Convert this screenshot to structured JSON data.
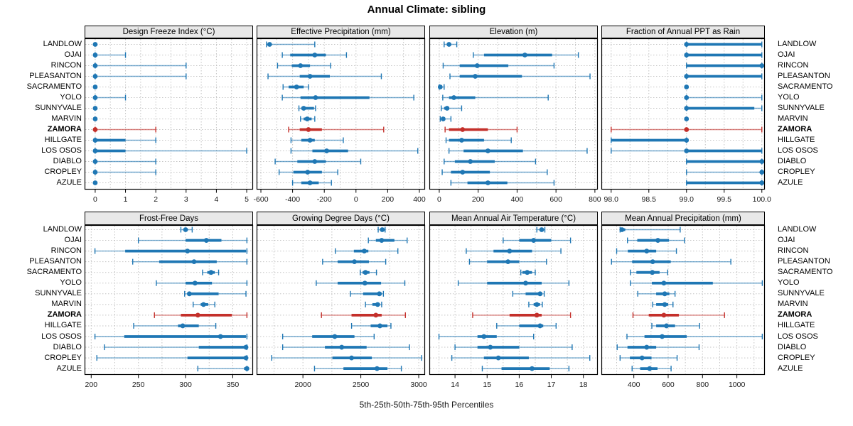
{
  "title": "Annual Climate: sibling",
  "caption": "5th-25th-50th-75th-95th Percentiles",
  "colors": {
    "site": "#1f77b4",
    "highlight": "#c4302b",
    "strip_bg": "#e8e8e8",
    "grid": "#c4c4c4",
    "border": "#000000",
    "panel_bg": "#ffffff"
  },
  "sites": [
    "LANDLOW",
    "OJAI",
    "RINCON",
    "PLEASANTON",
    "SACRAMENTO",
    "YOLO",
    "SUNNYVALE",
    "MARVIN",
    "ZAMORA",
    "HILLGATE",
    "LOS OSOS",
    "DIABLO",
    "CROPLEY",
    "AZULE"
  ],
  "highlight_site": "ZAMORA",
  "percentiles": [
    "5th",
    "25th",
    "50th",
    "75th",
    "95th"
  ],
  "chart_data": [
    {
      "type": "scatter",
      "subtype": "percentile-range-dotplot",
      "title": "Design Freeze Index (°C)",
      "xlim": [
        -0.35,
        5.21
      ],
      "ticks": [
        0,
        1,
        2,
        3,
        4,
        5
      ],
      "tick_labels": [
        "0",
        "1",
        "2",
        "3",
        "4",
        "5"
      ],
      "values": [
        [
          0,
          0,
          0,
          0,
          0
        ],
        [
          0,
          0,
          0,
          0,
          1
        ],
        [
          0,
          0,
          0,
          0,
          3
        ],
        [
          0,
          0,
          0,
          0,
          3
        ],
        [
          0,
          0,
          0,
          0,
          0
        ],
        [
          0,
          0,
          0,
          0,
          1
        ],
        [
          0,
          0,
          0,
          0,
          0
        ],
        [
          0,
          0,
          0,
          0,
          0
        ],
        [
          0,
          0,
          0,
          0,
          2
        ],
        [
          0,
          0,
          0,
          1,
          2
        ],
        [
          0,
          0,
          0,
          1,
          5
        ],
        [
          0,
          0,
          0,
          0,
          2
        ],
        [
          0,
          0,
          0,
          0,
          2
        ],
        [
          0,
          0,
          0,
          0,
          0
        ]
      ]
    },
    {
      "type": "scatter",
      "subtype": "percentile-range-dotplot",
      "title": "Effective Precipitation (mm)",
      "xlim": [
        -627,
        436
      ],
      "ticks": [
        -600,
        -400,
        -200,
        0,
        200,
        400
      ],
      "tick_labels": [
        "-600",
        "-400",
        "-200",
        "0",
        "200",
        "400"
      ],
      "values": [
        [
          -565,
          -555,
          -545,
          -535,
          -260
        ],
        [
          -465,
          -415,
          -260,
          -190,
          -60
        ],
        [
          -495,
          -405,
          -350,
          -290,
          -160
        ],
        [
          -555,
          -355,
          -290,
          -165,
          160
        ],
        [
          -460,
          -425,
          -375,
          -330,
          -300
        ],
        [
          -465,
          -350,
          -255,
          85,
          365
        ],
        [
          -360,
          -345,
          -330,
          -265,
          -255
        ],
        [
          -350,
          -330,
          -308,
          -280,
          -260
        ],
        [
          -425,
          -355,
          -300,
          -215,
          175
        ],
        [
          -410,
          -345,
          -290,
          -260,
          -80
        ],
        [
          -410,
          -275,
          -185,
          -50,
          390
        ],
        [
          -510,
          -370,
          -260,
          -190,
          30
        ],
        [
          -485,
          -395,
          -305,
          -215,
          -115
        ],
        [
          -400,
          -345,
          -290,
          -235,
          -155
        ]
      ]
    },
    {
      "type": "scatter",
      "subtype": "percentile-range-dotplot",
      "title": "Elevation (m)",
      "xlim": [
        -51,
        815
      ],
      "ticks": [
        0,
        200,
        400,
        600,
        800
      ],
      "tick_labels": [
        "0",
        "200",
        "400",
        "600",
        "800"
      ],
      "values": [
        [
          25,
          40,
          50,
          60,
          90
        ],
        [
          175,
          230,
          440,
          580,
          715
        ],
        [
          20,
          105,
          195,
          355,
          590
        ],
        [
          55,
          105,
          185,
          425,
          775
        ],
        [
          0,
          2,
          5,
          10,
          25
        ],
        [
          18,
          50,
          75,
          185,
          560
        ],
        [
          10,
          25,
          40,
          50,
          115
        ],
        [
          5,
          10,
          20,
          30,
          60
        ],
        [
          30,
          50,
          120,
          250,
          400
        ],
        [
          35,
          50,
          115,
          230,
          370
        ],
        [
          50,
          125,
          250,
          430,
          760
        ],
        [
          25,
          80,
          160,
          285,
          495
        ],
        [
          15,
          60,
          120,
          260,
          555
        ],
        [
          60,
          145,
          250,
          350,
          590
        ]
      ]
    },
    {
      "type": "scatter",
      "subtype": "percentile-range-dotplot",
      "title": "Fraction of Annual PPT as Rain",
      "xlim": [
        97.87,
        100.04
      ],
      "ticks": [
        98.0,
        98.5,
        99.0,
        99.5,
        100.0
      ],
      "tick_labels": [
        "98.0",
        "98.5",
        "99.0",
        "99.5",
        "100.0"
      ],
      "values": [
        [
          99,
          99,
          99,
          100,
          100
        ],
        [
          99,
          99,
          99,
          100,
          100
        ],
        [
          99,
          99,
          100,
          100,
          100
        ],
        [
          99,
          99,
          99,
          100,
          100
        ],
        [
          99,
          99,
          99,
          99,
          99
        ],
        [
          99,
          99,
          99,
          99,
          100
        ],
        [
          99,
          99,
          99,
          99.9,
          100
        ],
        [
          99,
          99,
          99,
          99,
          99
        ],
        [
          98,
          99,
          99,
          99,
          100
        ],
        [
          98,
          98,
          99,
          99,
          99
        ],
        [
          98,
          99,
          99,
          100,
          100
        ],
        [
          99,
          99,
          100,
          100,
          100
        ],
        [
          99,
          100,
          100,
          100,
          100
        ],
        [
          99,
          99,
          100,
          100,
          100
        ]
      ]
    },
    {
      "type": "scatter",
      "subtype": "percentile-range-dotplot",
      "title": "Frost-Free Days",
      "xlim": [
        193,
        371.5
      ],
      "ticks": [
        200,
        250,
        300,
        350
      ],
      "tick_labels": [
        "200",
        "250",
        "300",
        "350"
      ],
      "values": [
        [
          295,
          298,
          300,
          302,
          307
        ],
        [
          250,
          300,
          322,
          338,
          365
        ],
        [
          204,
          236,
          302,
          364,
          365
        ],
        [
          244,
          272,
          309,
          333,
          365
        ],
        [
          318,
          323,
          327,
          331,
          335
        ],
        [
          269,
          300,
          310,
          328,
          365
        ],
        [
          299,
          302,
          304,
          335,
          364
        ],
        [
          308,
          316,
          319,
          324,
          331
        ],
        [
          267,
          295,
          313,
          349,
          365
        ],
        [
          245,
          292,
          297,
          314,
          332
        ],
        [
          204,
          235,
          337,
          364,
          365
        ],
        [
          214,
          314,
          364,
          365,
          365
        ],
        [
          206,
          302,
          364,
          365,
          365
        ],
        [
          313,
          362,
          365,
          365,
          365
        ]
      ]
    },
    {
      "type": "scatter",
      "subtype": "percentile-range-dotplot",
      "title": "Growing Degree Days (°C)",
      "xlim": [
        1600,
        3055
      ],
      "ticks": [
        2000,
        2500,
        3000
      ],
      "tick_labels": [
        "2000",
        "2500",
        "3000"
      ],
      "values": [
        [
          2650,
          2670,
          2685,
          2700,
          2710
        ],
        [
          2565,
          2630,
          2680,
          2790,
          2900
        ],
        [
          2280,
          2440,
          2530,
          2565,
          2820
        ],
        [
          2170,
          2300,
          2445,
          2570,
          2715
        ],
        [
          2495,
          2515,
          2540,
          2575,
          2635
        ],
        [
          2115,
          2300,
          2535,
          2675,
          2880
        ],
        [
          2410,
          2520,
          2660,
          2680,
          2695
        ],
        [
          2540,
          2600,
          2645,
          2665,
          2680
        ],
        [
          2160,
          2420,
          2630,
          2680,
          2885
        ],
        [
          2420,
          2585,
          2665,
          2730,
          2760
        ],
        [
          1825,
          2080,
          2275,
          2445,
          2615
        ],
        [
          1825,
          2190,
          2335,
          2550,
          2920
        ],
        [
          1730,
          2255,
          2420,
          2595,
          3025
        ],
        [
          2100,
          2350,
          2640,
          2730,
          2850
        ]
      ]
    },
    {
      "type": "scatter",
      "subtype": "percentile-range-dotplot",
      "title": "Mean Annual Air Temperature (°C)",
      "xlim": [
        13.2,
        18.45
      ],
      "ticks": [
        14,
        15,
        16,
        17,
        18
      ],
      "tick_labels": [
        "14",
        "15",
        "16",
        "17",
        "18"
      ],
      "values": [
        [
          16.55,
          16.65,
          16.7,
          16.75,
          16.8
        ],
        [
          15.5,
          16.0,
          16.45,
          17.0,
          17.6
        ],
        [
          14.35,
          15.2,
          15.7,
          16.4,
          17.3
        ],
        [
          14.45,
          15.0,
          15.65,
          16.0,
          16.85
        ],
        [
          16.05,
          16.1,
          16.25,
          16.4,
          16.5
        ],
        [
          14.1,
          15.0,
          16.2,
          16.7,
          17.55
        ],
        [
          15.8,
          16.2,
          16.65,
          16.72,
          16.78
        ],
        [
          16.3,
          16.45,
          16.55,
          16.65,
          16.72
        ],
        [
          14.55,
          15.7,
          16.55,
          16.7,
          17.6
        ],
        [
          15.3,
          16.0,
          16.65,
          16.75,
          17.15
        ],
        [
          13.5,
          14.7,
          14.9,
          15.3,
          16.45
        ],
        [
          14.0,
          14.7,
          15.1,
          16.0,
          17.65
        ],
        [
          13.9,
          14.9,
          15.35,
          16.3,
          18.2
        ],
        [
          14.85,
          15.45,
          16.4,
          16.95,
          17.55
        ]
      ]
    },
    {
      "type": "scatter",
      "subtype": "percentile-range-dotplot",
      "title": "Mean Annual Precipitation (mm)",
      "xlim": [
        211,
        1163
      ],
      "ticks": [
        400,
        600,
        800,
        1000
      ],
      "tick_labels": [
        "400",
        "600",
        "800",
        "1000"
      ],
      "values": [
        [
          320,
          326,
          331,
          350,
          670
        ],
        [
          363,
          420,
          540,
          605,
          695
        ],
        [
          300,
          365,
          475,
          530,
          648
        ],
        [
          270,
          390,
          510,
          615,
          965
        ],
        [
          380,
          415,
          508,
          550,
          597
        ],
        [
          380,
          505,
          575,
          860,
          1148
        ],
        [
          423,
          530,
          580,
          607,
          640
        ],
        [
          510,
          530,
          580,
          600,
          628
        ],
        [
          395,
          487,
          575,
          662,
          928
        ],
        [
          505,
          530,
          590,
          640,
          783
        ],
        [
          360,
          462,
          565,
          708,
          1148
        ],
        [
          303,
          363,
          475,
          530,
          780
        ],
        [
          320,
          377,
          448,
          503,
          652
        ],
        [
          390,
          437,
          492,
          538,
          617
        ]
      ]
    }
  ]
}
